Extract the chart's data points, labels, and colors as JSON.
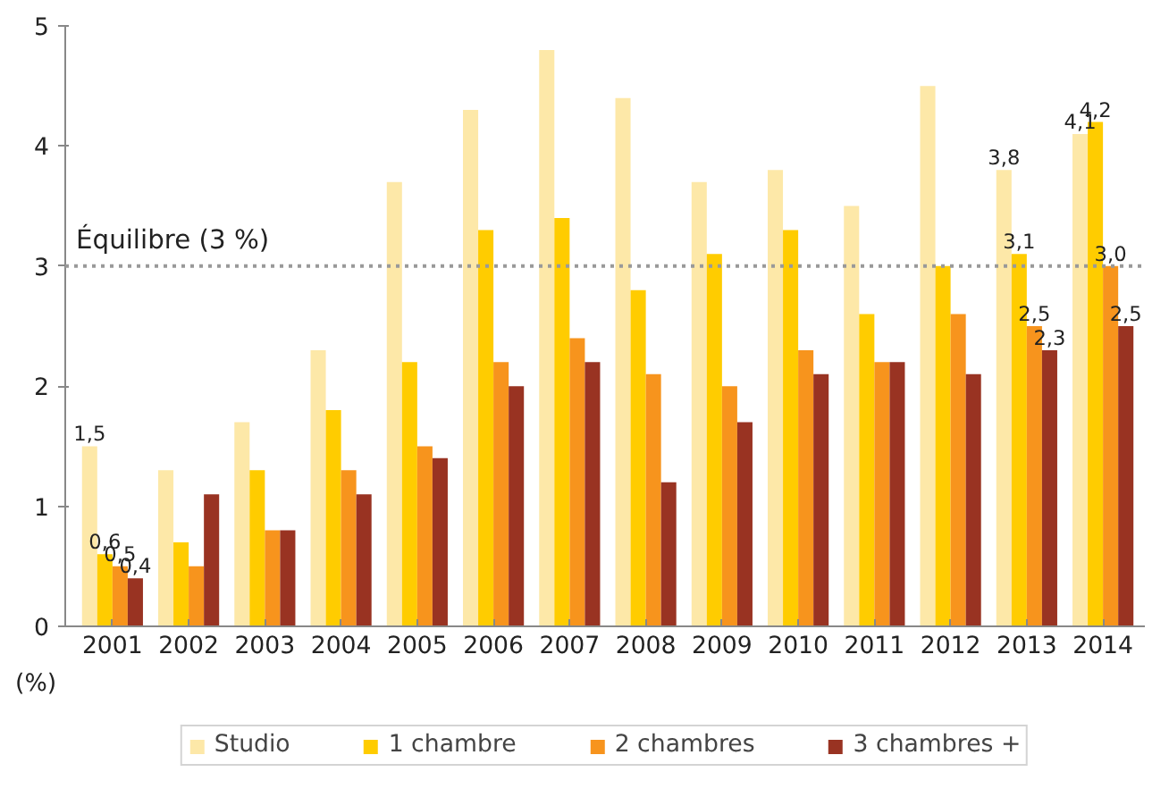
{
  "chart_data": {
    "type": "bar",
    "ylabel": "(%)",
    "categories": [
      "2001",
      "2002",
      "2003",
      "2004",
      "2005",
      "2006",
      "2007",
      "2008",
      "2009",
      "2010",
      "2011",
      "2012",
      "2013",
      "2014"
    ],
    "series": [
      {
        "name": "Studio",
        "color": "#fde8a8",
        "values": [
          1.5,
          1.3,
          1.7,
          2.3,
          3.7,
          4.3,
          4.8,
          4.4,
          3.7,
          3.8,
          3.5,
          4.5,
          3.8,
          4.1
        ],
        "value_labels": [
          "1,5",
          null,
          null,
          null,
          null,
          null,
          null,
          null,
          null,
          null,
          null,
          null,
          "3,8",
          "4,1"
        ]
      },
      {
        "name": "1 chambre",
        "color": "#ffcc00",
        "values": [
          0.6,
          0.7,
          1.3,
          1.8,
          2.2,
          3.3,
          3.4,
          2.8,
          3.1,
          3.3,
          2.6,
          3.0,
          3.1,
          4.2
        ],
        "value_labels": [
          "0,6",
          null,
          null,
          null,
          null,
          null,
          null,
          null,
          null,
          null,
          null,
          null,
          "3,1",
          "4,2"
        ]
      },
      {
        "name": "2 chambres",
        "color": "#f7941d",
        "values": [
          0.5,
          0.5,
          0.8,
          1.3,
          1.5,
          2.2,
          2.4,
          2.1,
          2.0,
          2.3,
          2.2,
          2.6,
          2.5,
          3.0
        ],
        "value_labels": [
          "0,5",
          null,
          null,
          null,
          null,
          null,
          null,
          null,
          null,
          null,
          null,
          null,
          "2,5",
          "3,0"
        ]
      },
      {
        "name": "3 chambres +",
        "color": "#993322",
        "values": [
          0.4,
          1.1,
          0.8,
          1.1,
          1.4,
          2.0,
          2.2,
          1.2,
          1.7,
          2.1,
          2.2,
          2.1,
          2.3,
          2.5
        ],
        "value_labels": [
          "0,4",
          null,
          null,
          null,
          null,
          null,
          null,
          null,
          null,
          null,
          null,
          null,
          "2,3",
          "2,5"
        ]
      }
    ],
    "ylim": [
      0,
      5
    ],
    "yticks": [
      0,
      1,
      2,
      3,
      4,
      5
    ],
    "grid": false,
    "legend": "bottom",
    "ref_lines": [
      {
        "axis": "y",
        "value": 3,
        "label": "Équilibre (3 %)",
        "color": "#999999",
        "line_style": "dotted"
      }
    ]
  }
}
